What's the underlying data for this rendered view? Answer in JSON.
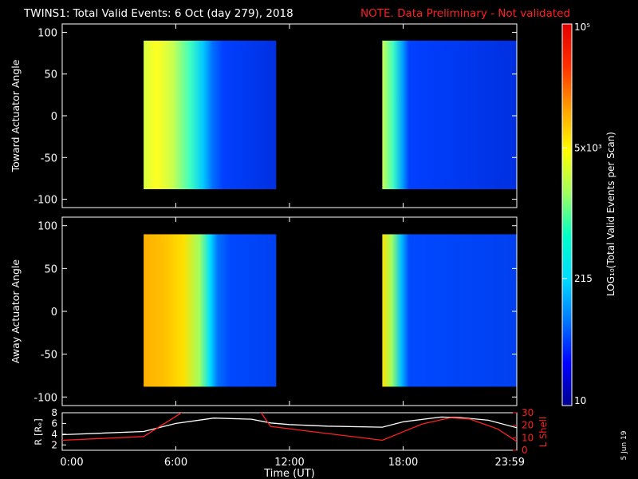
{
  "header": {
    "title": "TWINS1: Total Valid Events:  6 Oct (day 279), 2018",
    "note": "NOTE. Data Preliminary - Not validated",
    "note_color": "#ff2020"
  },
  "side_label": "5 Jun 19",
  "chart_data": [
    {
      "type": "heatmap",
      "ylabel": "Toward Actuator Angle",
      "ylim": [
        -110,
        110
      ],
      "yticks": [
        -100,
        -50,
        0,
        50,
        100
      ],
      "xlim_hours": [
        0,
        24
      ],
      "data_segments_hours": [
        [
          4.3,
          11.3
        ],
        [
          16.9,
          24.0
        ]
      ],
      "gap_fill": "black"
    },
    {
      "type": "heatmap",
      "ylabel": "Away Actuator Angle",
      "ylim": [
        -110,
        110
      ],
      "yticks": [
        -100,
        -50,
        0,
        50,
        100
      ],
      "xlim_hours": [
        0,
        24
      ],
      "data_segments_hours": [
        [
          4.3,
          11.3
        ],
        [
          16.9,
          24.0
        ]
      ],
      "gap_fill": "black"
    },
    {
      "type": "line",
      "xlabel": "Time (UT)",
      "ylabel_left": "R [Rₑ]",
      "ylabel_right": "L Shell",
      "ylim_left": [
        1,
        8
      ],
      "yticks_left": [
        "2",
        "4",
        "6",
        "8"
      ],
      "ylim_right": [
        0,
        30
      ],
      "yticks_right": [
        "0",
        "10",
        "20",
        "30"
      ],
      "xticks": [
        "0:00",
        "6:00",
        "12:00",
        "18:00",
        "23:59"
      ],
      "xtick_hours": [
        0,
        6,
        12,
        18,
        24
      ],
      "series": [
        {
          "color": "#ffffff",
          "axis": "left",
          "x": [
            0,
            4.3,
            6,
            8,
            10,
            11,
            12,
            14,
            16.9,
            18,
            20,
            21,
            22.5,
            24
          ],
          "y": [
            3.9,
            4.5,
            6.0,
            7.0,
            6.8,
            6.1,
            5.8,
            5.5,
            5.3,
            6.3,
            7.2,
            7.1,
            6.6,
            5.2
          ]
        },
        {
          "color": "#ff2020",
          "axis": "right",
          "x": [
            0,
            4.3,
            6.2,
            6.5,
            10,
            10.5,
            11,
            16.9,
            19,
            20.5,
            21.5,
            23,
            24
          ],
          "y": [
            8,
            11,
            29,
            33,
            33,
            30,
            19,
            8,
            21,
            26,
            25,
            17,
            7
          ]
        }
      ]
    }
  ],
  "colorbar": {
    "label": "LOG₁₀(Total Valid Events per Scan)",
    "ticks": [
      "10",
      "215",
      "5x10³",
      "10⁵"
    ],
    "log_values": [
      1,
      2.332,
      3.699,
      5
    ],
    "colors": [
      "#00008c",
      "#0000ff",
      "#0078ff",
      "#00dcff",
      "#00ffc8",
      "#a0ff60",
      "#ffff00",
      "#ffa000",
      "#ff3000",
      "#e00000"
    ]
  }
}
